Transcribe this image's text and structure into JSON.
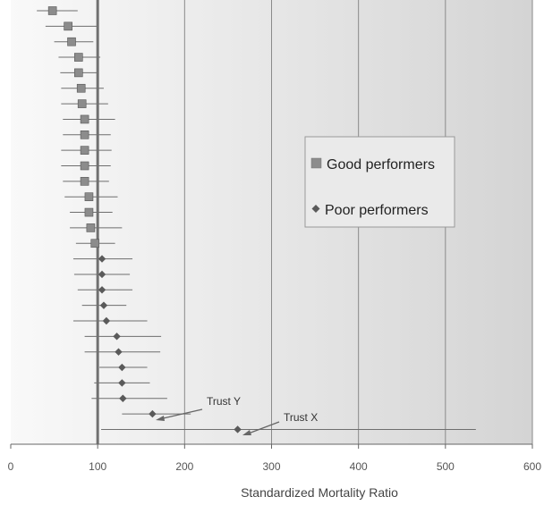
{
  "chart_data": {
    "type": "scatter",
    "subtype": "forest-plot-with-error-bars",
    "title": "",
    "xlabel": "Standardized Mortality Ratio",
    "ylabel": "",
    "xlim": [
      0,
      600
    ],
    "xticks": [
      0,
      100,
      200,
      300,
      400,
      500,
      600
    ],
    "reference_line": 100,
    "grid": "vertical",
    "legend_position": "right-middle",
    "colors": {
      "good": "#8c8c8c",
      "poor": "#5a5a5a",
      "reference": "#707070",
      "error_bar": "#6e6e6e"
    },
    "series": [
      {
        "name": "Good performers",
        "marker": "square",
        "points": [
          {
            "smr": 48,
            "lo": 30,
            "hi": 77
          },
          {
            "smr": 66,
            "lo": 40,
            "hi": 100
          },
          {
            "smr": 70,
            "lo": 50,
            "hi": 95
          },
          {
            "smr": 78,
            "lo": 55,
            "hi": 103
          },
          {
            "smr": 78,
            "lo": 57,
            "hi": 100
          },
          {
            "smr": 81,
            "lo": 58,
            "hi": 107
          },
          {
            "smr": 82,
            "lo": 58,
            "hi": 112
          },
          {
            "smr": 85,
            "lo": 60,
            "hi": 120
          },
          {
            "smr": 85,
            "lo": 60,
            "hi": 115
          },
          {
            "smr": 85,
            "lo": 58,
            "hi": 116
          },
          {
            "smr": 85,
            "lo": 58,
            "hi": 115
          },
          {
            "smr": 85,
            "lo": 60,
            "hi": 113
          },
          {
            "smr": 90,
            "lo": 62,
            "hi": 123
          },
          {
            "smr": 90,
            "lo": 68,
            "hi": 117
          },
          {
            "smr": 92,
            "lo": 68,
            "hi": 128
          },
          {
            "smr": 97,
            "lo": 75,
            "hi": 120
          }
        ]
      },
      {
        "name": "Poor performers",
        "marker": "diamond",
        "points": [
          {
            "smr": 105,
            "lo": 72,
            "hi": 140
          },
          {
            "smr": 105,
            "lo": 73,
            "hi": 137
          },
          {
            "smr": 105,
            "lo": 77,
            "hi": 140
          },
          {
            "smr": 107,
            "lo": 82,
            "hi": 133
          },
          {
            "smr": 110,
            "lo": 72,
            "hi": 157
          },
          {
            "smr": 122,
            "lo": 85,
            "hi": 173
          },
          {
            "smr": 124,
            "lo": 85,
            "hi": 172
          },
          {
            "smr": 128,
            "lo": 102,
            "hi": 157
          },
          {
            "smr": 128,
            "lo": 96,
            "hi": 160
          },
          {
            "smr": 129,
            "lo": 93,
            "hi": 180
          },
          {
            "smr": 163,
            "lo": 128,
            "hi": 207,
            "label": "Trust Y"
          },
          {
            "smr": 261,
            "lo": 104,
            "hi": 535,
            "label": "Trust X"
          }
        ]
      }
    ],
    "annotations": [
      {
        "text": "Trust Y"
      },
      {
        "text": "Trust X"
      }
    ]
  }
}
